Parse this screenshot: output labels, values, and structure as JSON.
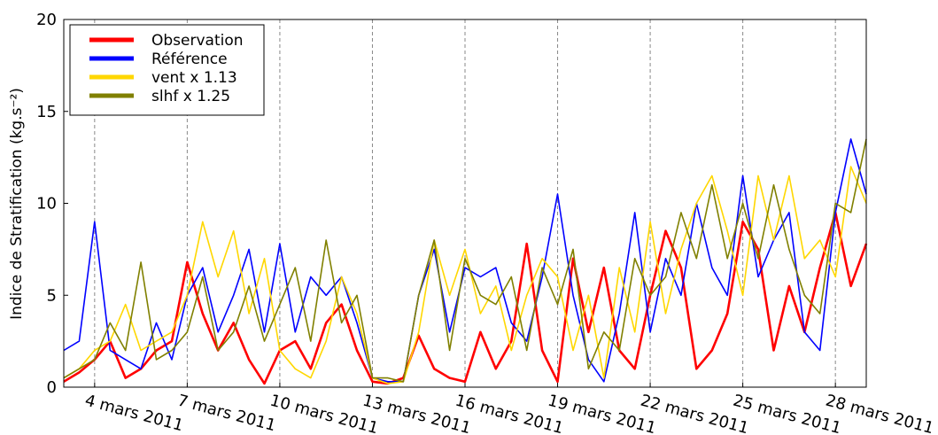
{
  "chart_data": {
    "type": "line",
    "ylabel": "Indice de Stratification (kg.s⁻²)",
    "xlim": [
      3,
      29
    ],
    "ylim": [
      0,
      20
    ],
    "yticks": [
      0,
      5,
      10,
      15,
      20
    ],
    "xticks": [
      {
        "value": 4,
        "label": "4 mars 2011"
      },
      {
        "value": 7,
        "label": "7 mars 2011"
      },
      {
        "value": 10,
        "label": "10 mars 2011"
      },
      {
        "value": 13,
        "label": "13 mars 2011"
      },
      {
        "value": 16,
        "label": "16 mars 2011"
      },
      {
        "value": 19,
        "label": "19 mars 2011"
      },
      {
        "value": 22,
        "label": "22 mars 2011"
      },
      {
        "value": 25,
        "label": "25 mars 2011"
      },
      {
        "value": 28,
        "label": "28 mars 2011"
      }
    ],
    "grid": "x",
    "legend": "upper left",
    "x": [
      3,
      3.5,
      4,
      4.5,
      5,
      5.5,
      6,
      6.5,
      7,
      7.5,
      8,
      8.5,
      9,
      9.5,
      10,
      10.5,
      11,
      11.5,
      12,
      12.5,
      13,
      13.5,
      14,
      14.5,
      15,
      15.5,
      16,
      16.5,
      17,
      17.5,
      18,
      18.5,
      19,
      19.5,
      20,
      20.5,
      21,
      21.5,
      22,
      22.5,
      23,
      23.5,
      24,
      24.5,
      25,
      25.5,
      26,
      26.5,
      27,
      27.5,
      28,
      28.5,
      29
    ],
    "series": [
      {
        "name": "Observation",
        "color": "#ff0000",
        "values": [
          0.3,
          0.8,
          1.5,
          2.5,
          0.5,
          1.0,
          2.0,
          2.5,
          6.8,
          4.0,
          2.0,
          3.5,
          1.5,
          0.2,
          2.0,
          2.5,
          1.0,
          3.5,
          4.5,
          2.0,
          0.3,
          0.2,
          0.5,
          2.8,
          1.0,
          0.5,
          0.3,
          3.0,
          1.0,
          2.5,
          7.8,
          2.0,
          0.3,
          7.0,
          3.0,
          6.5,
          2.0,
          1.0,
          5.0,
          8.5,
          6.5,
          1.0,
          2.0,
          4.0,
          9.0,
          7.5,
          2.0,
          5.5,
          3.0,
          6.5,
          9.5,
          5.5,
          7.8
        ]
      },
      {
        "name": "Référence",
        "color": "#0000ff",
        "values": [
          2.0,
          2.5,
          9.0,
          2.0,
          1.5,
          1.0,
          3.5,
          1.5,
          5.0,
          6.5,
          3.0,
          5.0,
          7.5,
          3.0,
          7.8,
          3.0,
          6.0,
          5.0,
          6.0,
          3.5,
          0.5,
          0.3,
          0.3,
          5.0,
          7.5,
          3.0,
          6.5,
          6.0,
          6.5,
          3.5,
          2.5,
          6.0,
          10.5,
          5.0,
          1.5,
          0.3,
          4.0,
          9.5,
          3.0,
          7.0,
          5.0,
          10.0,
          6.5,
          5.0,
          11.5,
          6.0,
          8.0,
          9.5,
          3.0,
          2.0,
          9.5,
          13.5,
          10.5
        ]
      },
      {
        "name": "vent x 1.13",
        "color": "#ffd700",
        "values": [
          0.5,
          1.0,
          2.0,
          2.5,
          4.5,
          2.0,
          2.5,
          3.0,
          5.0,
          9.0,
          6.0,
          8.5,
          4.0,
          7.0,
          2.0,
          1.0,
          0.5,
          2.5,
          6.0,
          4.0,
          0.5,
          0.2,
          0.3,
          3.0,
          8.0,
          5.0,
          7.5,
          4.0,
          5.5,
          2.0,
          5.0,
          7.0,
          6.0,
          2.0,
          5.0,
          0.5,
          6.5,
          3.0,
          9.0,
          4.0,
          7.5,
          10.0,
          11.5,
          8.5,
          5.0,
          11.5,
          8.0,
          11.5,
          7.0,
          8.0,
          6.0,
          12.0,
          10.0
        ]
      },
      {
        "name": "slhf x 1.25",
        "color": "#808000",
        "values": [
          0.5,
          1.0,
          1.5,
          3.5,
          2.0,
          6.8,
          1.5,
          2.0,
          3.0,
          6.0,
          2.0,
          3.0,
          5.5,
          2.5,
          4.5,
          6.5,
          2.5,
          8.0,
          3.5,
          5.0,
          0.5,
          0.5,
          0.3,
          5.0,
          8.0,
          2.0,
          7.0,
          5.0,
          4.5,
          6.0,
          2.0,
          6.5,
          4.5,
          7.5,
          1.0,
          3.0,
          2.0,
          7.0,
          5.0,
          6.0,
          9.5,
          7.0,
          11.0,
          7.0,
          10.0,
          7.0,
          11.0,
          7.5,
          5.0,
          4.0,
          10.0,
          9.5,
          13.5
        ]
      }
    ]
  }
}
